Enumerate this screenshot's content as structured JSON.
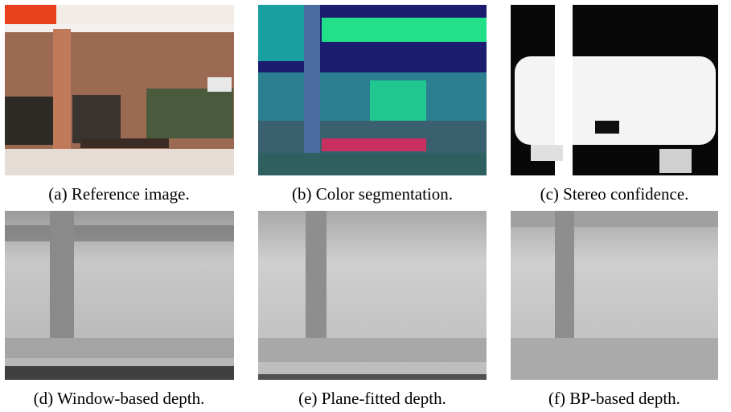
{
  "figure": {
    "captions": [
      "(a) Reference image.",
      "(b) Color segmentation.",
      "(c) Stereo confidence.",
      "(d) Window-based depth.",
      "(e) Plane-fitted depth.",
      "(f) BP-based depth."
    ]
  }
}
